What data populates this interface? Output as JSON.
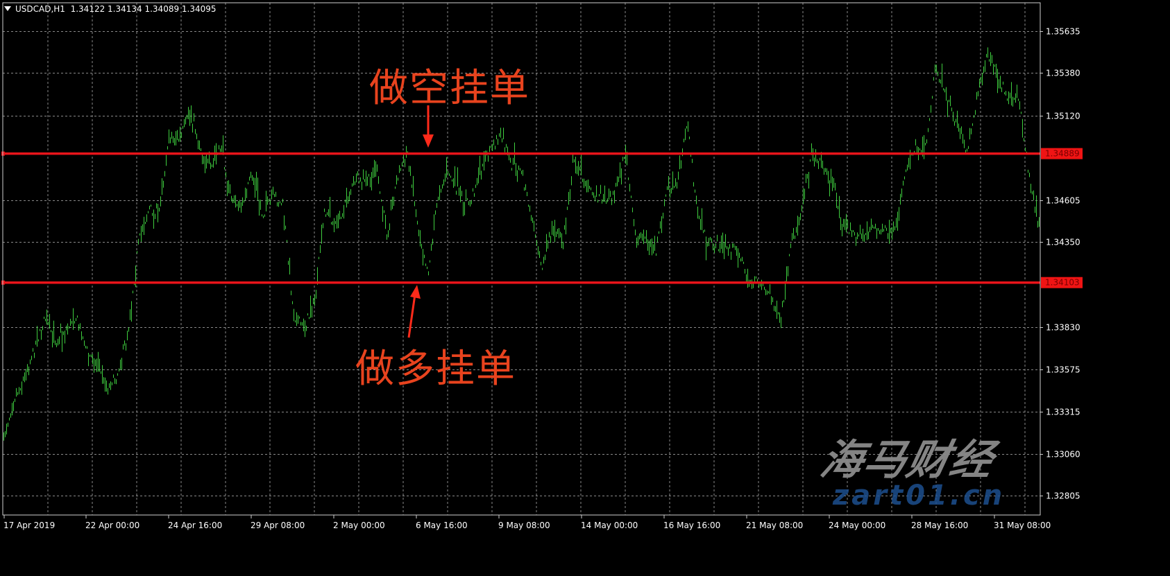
{
  "header": {
    "symbol": "USDCAD,H1",
    "ohlc": "1.34122 1.34134 1.34089 1.34095"
  },
  "annotations": {
    "sell_pending": "做空挂单",
    "buy_pending": "做多挂单",
    "color": "#e8431e"
  },
  "watermark": {
    "logo_text": "海马财经",
    "site_text": "zart01.cn"
  },
  "colors": {
    "background": "#000000",
    "bars": "#3fcf3f",
    "grid": "#8a8a8a",
    "level_lines": "#e8141a",
    "text": "#ffffff"
  },
  "chart_data": {
    "type": "bar",
    "subtype": "ohlc-bars",
    "title": "USDCAD,H1",
    "grid": true,
    "ylim": [
      1.3265,
      1.3573
    ],
    "y_ticks": [
      "1.35635",
      "1.35380",
      "1.35120",
      "1.34605",
      "1.34350",
      "1.33830",
      "1.33575",
      "1.33315",
      "1.33060",
      "1.32805"
    ],
    "x_ticks": [
      "17 Apr 2019",
      "22 Apr 00:00",
      "24 Apr 16:00",
      "29 Apr 08:00",
      "2 May 00:00",
      "6 May 16:00",
      "9 May 08:00",
      "14 May 00:00",
      "16 May 16:00",
      "21 May 08:00",
      "24 May 00:00",
      "28 May 16:00",
      "31 May 08:00"
    ],
    "x_range": [
      "17 Apr 2019",
      "31 May 2019"
    ],
    "price_path": [
      1.3315,
      1.334,
      1.3353,
      1.3371,
      1.3388,
      1.3374,
      1.3382,
      1.339,
      1.3369,
      1.3359,
      1.3346,
      1.3355,
      1.338,
      1.3434,
      1.3455,
      1.3453,
      1.3499,
      1.3498,
      1.3515,
      1.3492,
      1.3479,
      1.3494,
      1.346,
      1.3458,
      1.3476,
      1.3451,
      1.3463,
      1.3457,
      1.339,
      1.3383,
      1.3398,
      1.3455,
      1.3445,
      1.3457,
      1.3473,
      1.3471,
      1.3478,
      1.344,
      1.3474,
      1.349,
      1.3444,
      1.3417,
      1.3465,
      1.3477,
      1.3464,
      1.3458,
      1.3477,
      1.3491,
      1.3501,
      1.3482,
      1.3478,
      1.3449,
      1.3421,
      1.3444,
      1.3434,
      1.3484,
      1.3473,
      1.3463,
      1.3462,
      1.3465,
      1.349,
      1.3439,
      1.3437,
      1.3428,
      1.3466,
      1.3469,
      1.3509,
      1.3453,
      1.3435,
      1.3433,
      1.3431,
      1.3429,
      1.3411,
      1.3411,
      1.3403,
      1.3386,
      1.343,
      1.3455,
      1.3488,
      1.3482,
      1.3471,
      1.3448,
      1.344,
      1.344,
      1.3443,
      1.3442,
      1.344,
      1.3476,
      1.3494,
      1.3491,
      1.3543,
      1.3523,
      1.3509,
      1.3491,
      1.3522,
      1.3549,
      1.3536,
      1.3522,
      1.3522,
      1.3478,
      1.3444
    ],
    "levels": [
      {
        "price": 1.34889,
        "label": "1.34889"
      },
      {
        "price": 1.34103,
        "label": "1.34103"
      }
    ]
  }
}
